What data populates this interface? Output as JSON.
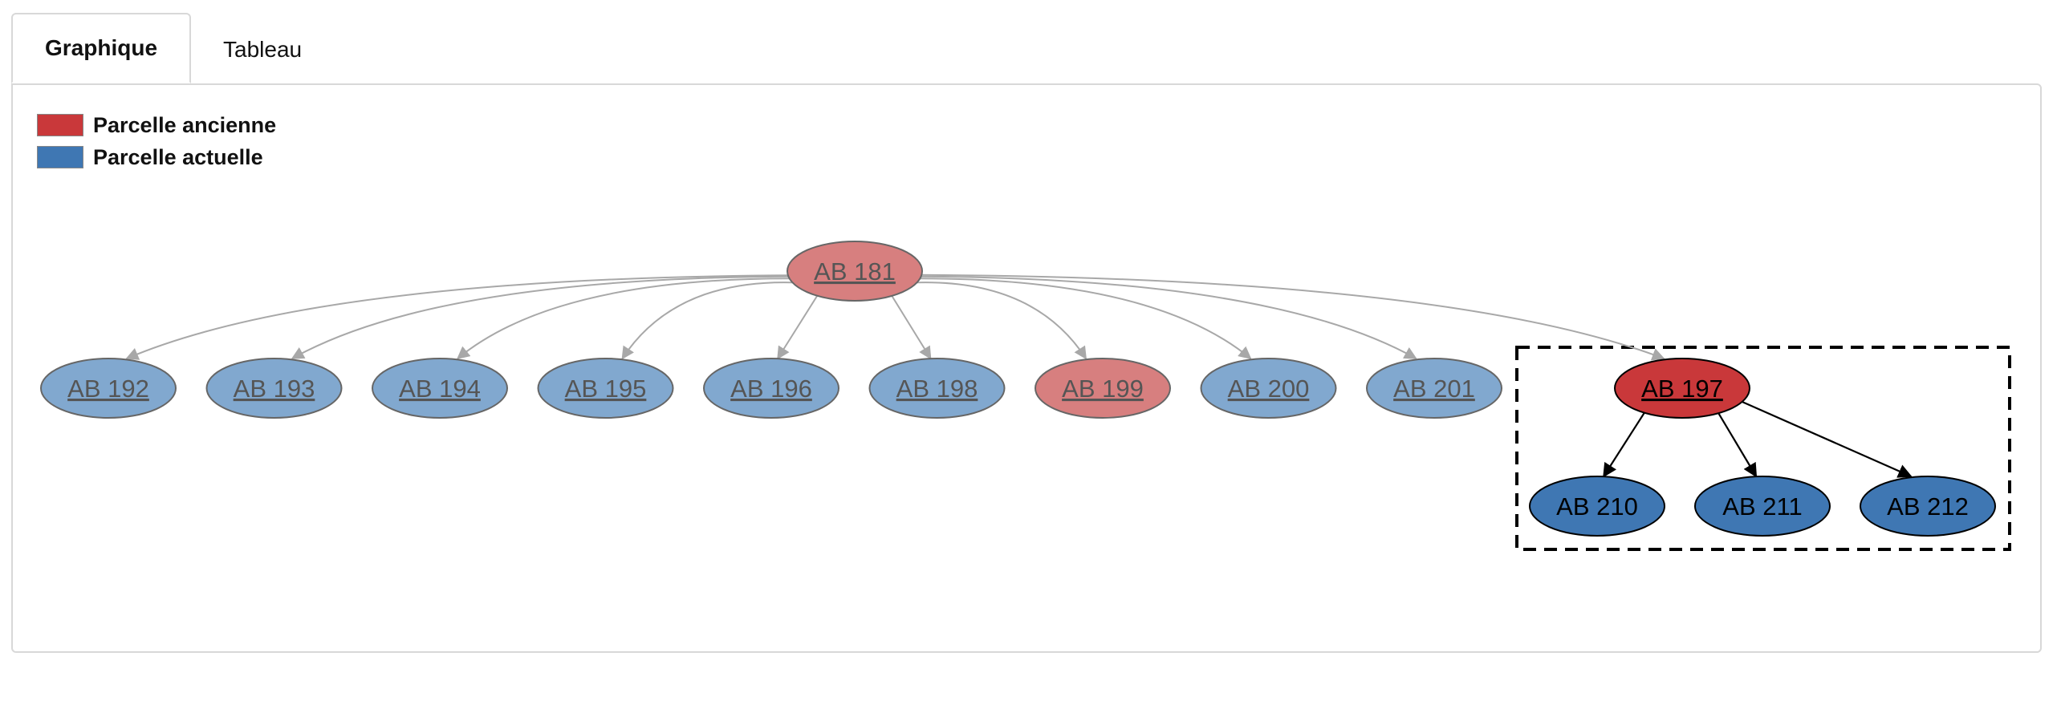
{
  "tabs": [
    {
      "label": "Graphique",
      "active": true
    },
    {
      "label": "Tableau",
      "active": false
    }
  ],
  "legend": {
    "items": [
      {
        "label": "Parcelle ancienne",
        "color": "#c9383a"
      },
      {
        "label": "Parcelle actuelle",
        "color": "#3f77b3"
      }
    ]
  },
  "colors": {
    "old_faded": "#d77f7f",
    "current_faded": "#81a8cf",
    "old_active": "#c9383a",
    "current_active": "#3f77b3",
    "edge_faded": "#a8a8a8",
    "edge_active": "#000000"
  },
  "graph": {
    "root": {
      "id": "n181",
      "label": "AB 181",
      "kind": "old",
      "faded": true
    },
    "children": [
      {
        "id": "n192",
        "label": "AB 192",
        "kind": "current",
        "faded": true
      },
      {
        "id": "n193",
        "label": "AB 193",
        "kind": "current",
        "faded": true
      },
      {
        "id": "n194",
        "label": "AB 194",
        "kind": "current",
        "faded": true
      },
      {
        "id": "n195",
        "label": "AB 195",
        "kind": "current",
        "faded": true
      },
      {
        "id": "n196",
        "label": "AB 196",
        "kind": "current",
        "faded": true
      },
      {
        "id": "n198",
        "label": "AB 198",
        "kind": "current",
        "faded": true
      },
      {
        "id": "n199",
        "label": "AB 199",
        "kind": "old",
        "faded": true
      },
      {
        "id": "n200",
        "label": "AB 200",
        "kind": "current",
        "faded": true
      },
      {
        "id": "n201",
        "label": "AB 201",
        "kind": "current",
        "faded": true
      },
      {
        "id": "n197",
        "label": "AB 197",
        "kind": "old",
        "faded": false,
        "selected": true
      }
    ],
    "selected_children": [
      {
        "id": "n210",
        "label": "AB 210",
        "kind": "current",
        "faded": false
      },
      {
        "id": "n211",
        "label": "AB 211",
        "kind": "current",
        "faded": false
      },
      {
        "id": "n212",
        "label": "AB 212",
        "kind": "current",
        "faded": false
      }
    ]
  }
}
